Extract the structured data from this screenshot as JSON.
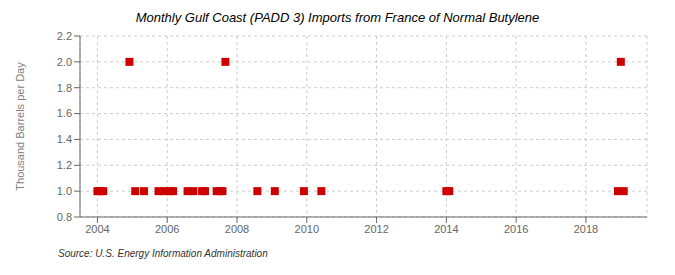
{
  "chart_data": {
    "type": "scatter",
    "title": "Monthly Gulf Coast (PADD 3) Imports from France of Normal Butylene",
    "ylabel": "Thousand Barrels per Day",
    "annotation": "Source: U.S. Energy Information Administration",
    "x": [
      2004.0,
      2004.083,
      2004.167,
      2004.917,
      2005.083,
      2005.333,
      2005.75,
      2005.917,
      2006.083,
      2006.167,
      2006.583,
      2006.75,
      2007.0,
      2007.083,
      2007.417,
      2007.5,
      2007.583,
      2007.667,
      2008.583,
      2009.083,
      2009.917,
      2010.417,
      2014.0,
      2014.083,
      2018.917,
      2019.0,
      2019.083
    ],
    "values": [
      1.0,
      1.0,
      1.0,
      2.0,
      1.0,
      1.0,
      1.0,
      1.0,
      1.0,
      1.0,
      1.0,
      1.0,
      1.0,
      1.0,
      1.0,
      1.0,
      1.0,
      2.0,
      1.0,
      1.0,
      1.0,
      1.0,
      1.0,
      1.0,
      1.0,
      2.0,
      1.0
    ],
    "color": "#cc0000",
    "marker": "square",
    "xlim": [
      2003.5,
      2019.75
    ],
    "xticks": [
      2004,
      2006,
      2008,
      2010,
      2012,
      2014,
      2016,
      2018
    ],
    "ylim": [
      0.8,
      2.2
    ],
    "yticks": [
      0.8,
      {
        "value": 1.0,
        "label": "1.0"
      },
      1.2,
      1.4,
      1.6,
      1.8,
      {
        "value": 2.0,
        "label": "2.0"
      },
      2.2
    ],
    "grid": true
  }
}
